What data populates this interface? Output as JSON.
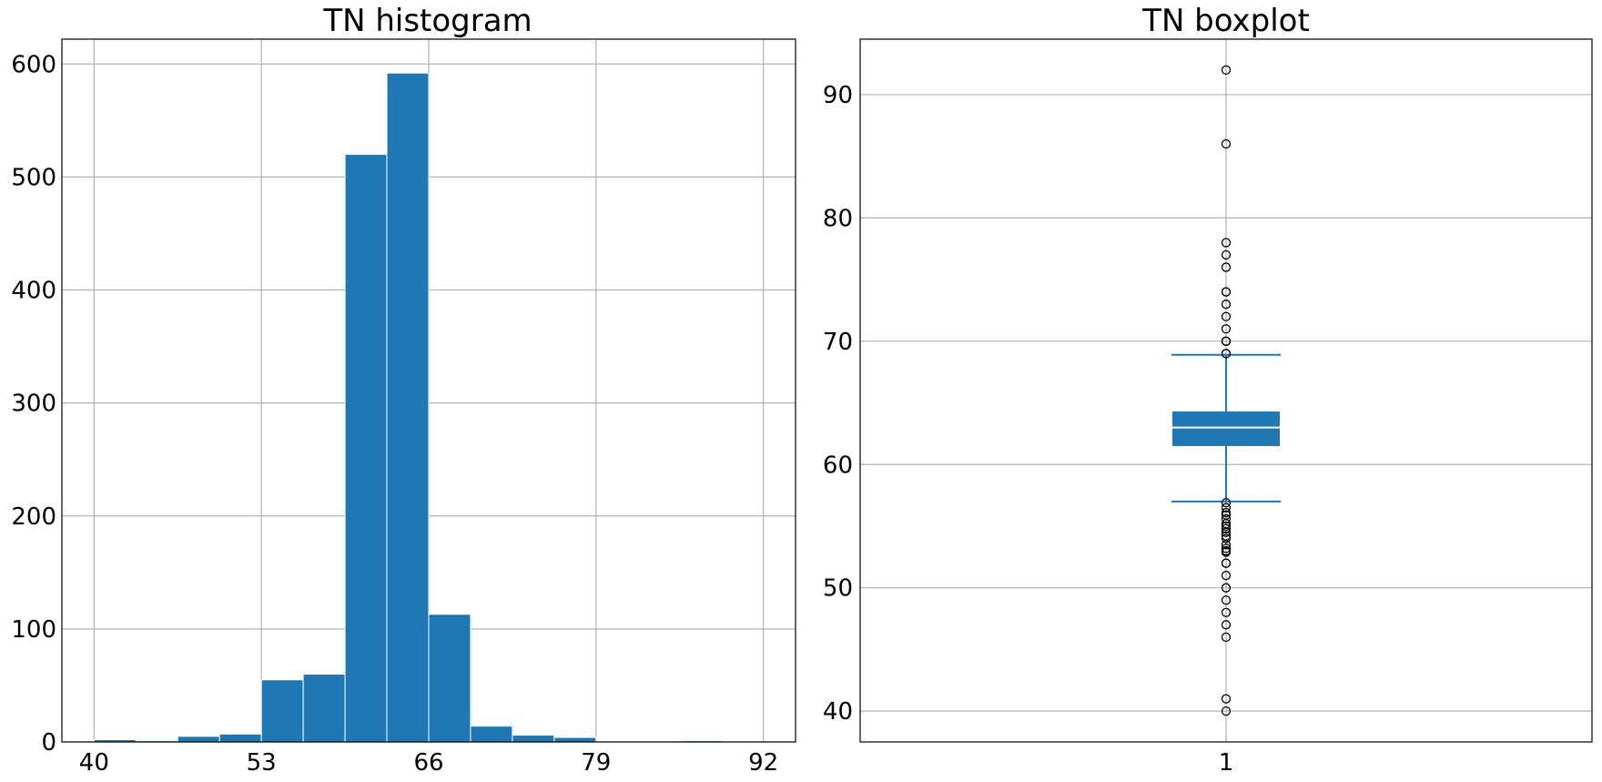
{
  "chart_data": [
    {
      "type": "bar",
      "title": "TN histogram",
      "xlabel": "",
      "ylabel": "",
      "bin_edges": [
        40,
        43.25,
        46.5,
        49.75,
        53,
        56.25,
        59.5,
        62.75,
        66,
        69.25,
        72.5,
        75.75,
        79,
        82.25,
        85.5,
        88.75,
        92
      ],
      "values": [
        2,
        1,
        5,
        7,
        55,
        60,
        520,
        592,
        113,
        14,
        6,
        4,
        0,
        0,
        1,
        0
      ],
      "xticks": [
        40,
        53,
        66,
        79,
        92
      ],
      "yticks": [
        0,
        100,
        200,
        300,
        400,
        500,
        600
      ],
      "xlim": [
        37.5,
        94.5
      ],
      "ylim": [
        0,
        622
      ],
      "color": "#1f77b4",
      "grid": true
    },
    {
      "type": "box",
      "title": "TN boxplot",
      "xlabel": "",
      "ylabel": "",
      "categories": [
        "1"
      ],
      "q1": 61.5,
      "median": 63,
      "q3": 64.3,
      "whisker_low": 57,
      "whisker_high": 68.9,
      "outliers": [
        92,
        86,
        78,
        77,
        76,
        74,
        74,
        73,
        72,
        71,
        70,
        70,
        69,
        69,
        56.9,
        56.5,
        56.1,
        55.9,
        55.6,
        55.2,
        55,
        54.8,
        54.5,
        54.2,
        54,
        53.5,
        53.2,
        53,
        52.9,
        52,
        52,
        51,
        50,
        49,
        48,
        47,
        46,
        41,
        40
      ],
      "yticks": [
        40,
        50,
        60,
        70,
        80,
        90
      ],
      "xticks": [
        "1"
      ],
      "ylim": [
        37.5,
        94.5
      ],
      "color": "#1f77b4",
      "grid": true
    }
  ]
}
